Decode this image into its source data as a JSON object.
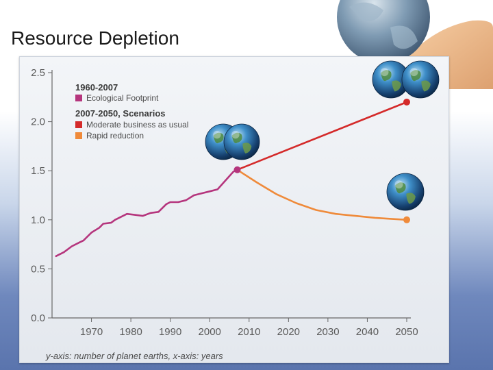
{
  "slide": {
    "title": "Resource Depletion"
  },
  "colors": {
    "footprint": "#b5357d",
    "moderate": "#d42a2a",
    "rapid": "#ef8a3a",
    "axis": "#666666"
  },
  "icons": {
    "globe": "earth-globe-icon",
    "hand": "hand-holding-globe-icon"
  },
  "chart_data": {
    "type": "line",
    "title": "",
    "xlabel": "",
    "ylabel": "",
    "caption": "y-axis: number of planet earths, x-axis: years",
    "xlim": [
      1960,
      2050
    ],
    "ylim": [
      0,
      2.5
    ],
    "x_ticks": [
      1970,
      1980,
      1990,
      2000,
      2010,
      2020,
      2030,
      2040,
      2050
    ],
    "y_ticks": [
      0.0,
      0.5,
      1.0,
      1.5,
      2.0,
      2.5
    ],
    "y_tick_labels": [
      "0.0",
      "0.5",
      "1.0",
      "1.5",
      "2.0",
      "2.5"
    ],
    "grid": false,
    "legend": {
      "placement": "top-left",
      "group1": "1960-2007",
      "group2": "2007-2050, Scenarios"
    },
    "series": [
      {
        "name": "Ecological Footprint",
        "group": 1,
        "color": "#b5357d",
        "points": [
          [
            1961,
            0.63
          ],
          [
            1963,
            0.67
          ],
          [
            1965,
            0.73
          ],
          [
            1967,
            0.77
          ],
          [
            1968,
            0.79
          ],
          [
            1970,
            0.87
          ],
          [
            1972,
            0.92
          ],
          [
            1973,
            0.96
          ],
          [
            1975,
            0.97
          ],
          [
            1976,
            1.0
          ],
          [
            1978,
            1.04
          ],
          [
            1979,
            1.06
          ],
          [
            1981,
            1.05
          ],
          [
            1983,
            1.04
          ],
          [
            1985,
            1.07
          ],
          [
            1987,
            1.08
          ],
          [
            1989,
            1.16
          ],
          [
            1990,
            1.18
          ],
          [
            1992,
            1.18
          ],
          [
            1994,
            1.2
          ],
          [
            1996,
            1.25
          ],
          [
            1998,
            1.27
          ],
          [
            2000,
            1.29
          ],
          [
            2002,
            1.31
          ],
          [
            2004,
            1.4
          ],
          [
            2006,
            1.49
          ],
          [
            2007,
            1.51
          ]
        ]
      },
      {
        "name": "Moderate business as usual",
        "group": 2,
        "color": "#d42a2a",
        "points": [
          [
            2007,
            1.51
          ],
          [
            2050,
            2.2
          ]
        ]
      },
      {
        "name": "Rapid reduction",
        "group": 2,
        "color": "#ef8a3a",
        "points": [
          [
            2007,
            1.51
          ],
          [
            2012,
            1.38
          ],
          [
            2017,
            1.26
          ],
          [
            2022,
            1.17
          ],
          [
            2027,
            1.1
          ],
          [
            2032,
            1.06
          ],
          [
            2037,
            1.04
          ],
          [
            2042,
            1.02
          ],
          [
            2046,
            1.01
          ],
          [
            2050,
            1.0
          ]
        ]
      }
    ]
  }
}
